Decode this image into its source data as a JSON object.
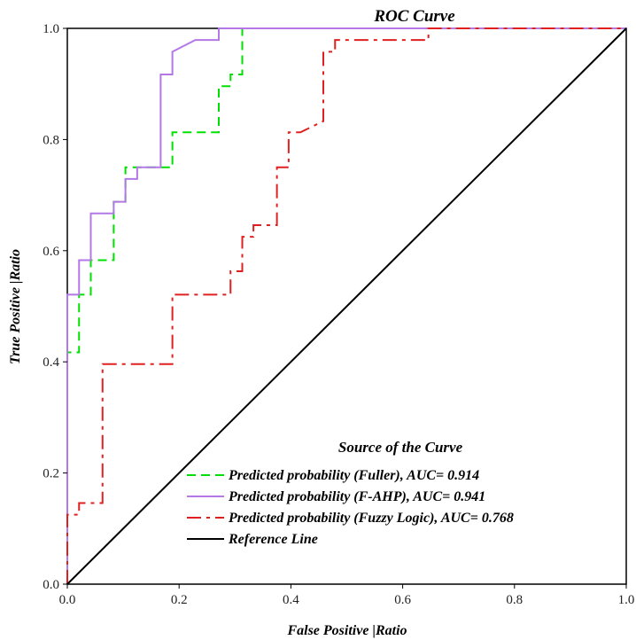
{
  "chart_data": {
    "type": "line",
    "title": "ROC Curve",
    "xlabel": "False Positive |Ratio",
    "ylabel": "True Positive |Ratio",
    "xlim": [
      0,
      1
    ],
    "ylim": [
      0,
      1
    ],
    "x_ticks": [
      "0.0",
      "0.2",
      "0.4",
      "0.6",
      "0.8",
      "1.0"
    ],
    "y_ticks": [
      "0.0",
      "0.2",
      "0.4",
      "0.6",
      "0.8",
      "1.0"
    ],
    "grid": false,
    "legend": {
      "title": "Source of the Curve",
      "placement": "bottom-right",
      "entries": [
        {
          "label": "Predicted probability (Fuller), AUC= 0.914",
          "color": "#00e000",
          "dash": "dashed"
        },
        {
          "label": "Predicted probability (F-AHP), AUC= 0.941",
          "color": "#b478e6",
          "dash": "solid"
        },
        {
          "label": "Predicted probability (Fuzzy Logic), AUC= 0.768",
          "color": "#e02020",
          "dash": "dash-dot"
        },
        {
          "label": "Reference Line",
          "color": "#000000",
          "dash": "solid"
        }
      ]
    },
    "series": [
      {
        "color": "#00e000",
        "dash": "dashed",
        "points": [
          [
            0,
            0
          ],
          [
            0,
            0.417
          ],
          [
            0.021,
            0.417
          ],
          [
            0.021,
            0.521
          ],
          [
            0.042,
            0.521
          ],
          [
            0.042,
            0.583
          ],
          [
            0.083,
            0.583
          ],
          [
            0.083,
            0.688
          ],
          [
            0.104,
            0.688
          ],
          [
            0.104,
            0.75
          ],
          [
            0.188,
            0.75
          ],
          [
            0.188,
            0.813
          ],
          [
            0.271,
            0.813
          ],
          [
            0.271,
            0.896
          ],
          [
            0.292,
            0.896
          ],
          [
            0.292,
            0.917
          ],
          [
            0.313,
            0.917
          ],
          [
            0.313,
            1.0
          ],
          [
            1.0,
            1.0
          ]
        ]
      },
      {
        "color": "#b478e6",
        "dash": "solid",
        "points": [
          [
            0,
            0
          ],
          [
            0,
            0.521
          ],
          [
            0.021,
            0.521
          ],
          [
            0.021,
            0.583
          ],
          [
            0.042,
            0.583
          ],
          [
            0.042,
            0.667
          ],
          [
            0.083,
            0.667
          ],
          [
            0.083,
            0.688
          ],
          [
            0.104,
            0.688
          ],
          [
            0.104,
            0.729
          ],
          [
            0.125,
            0.729
          ],
          [
            0.125,
            0.75
          ],
          [
            0.167,
            0.75
          ],
          [
            0.167,
            0.917
          ],
          [
            0.188,
            0.917
          ],
          [
            0.188,
            0.958
          ],
          [
            0.229,
            0.979
          ],
          [
            0.271,
            0.979
          ],
          [
            0.271,
            1.0
          ],
          [
            1.0,
            1.0
          ]
        ]
      },
      {
        "color": "#e02020",
        "dash": "dash-dot",
        "points": [
          [
            0,
            0
          ],
          [
            0,
            0.125
          ],
          [
            0.021,
            0.125
          ],
          [
            0.021,
            0.146
          ],
          [
            0.063,
            0.146
          ],
          [
            0.063,
            0.396
          ],
          [
            0.188,
            0.396
          ],
          [
            0.188,
            0.521
          ],
          [
            0.292,
            0.521
          ],
          [
            0.292,
            0.563
          ],
          [
            0.313,
            0.563
          ],
          [
            0.313,
            0.625
          ],
          [
            0.333,
            0.625
          ],
          [
            0.333,
            0.646
          ],
          [
            0.375,
            0.646
          ],
          [
            0.375,
            0.75
          ],
          [
            0.396,
            0.75
          ],
          [
            0.396,
            0.813
          ],
          [
            0.417,
            0.813
          ],
          [
            0.458,
            0.833
          ],
          [
            0.458,
            0.958
          ],
          [
            0.479,
            0.958
          ],
          [
            0.479,
            0.979
          ],
          [
            0.646,
            0.979
          ],
          [
            0.646,
            1.0
          ],
          [
            1.0,
            1.0
          ]
        ]
      },
      {
        "color": "#000000",
        "dash": "solid",
        "points": [
          [
            0,
            0
          ],
          [
            1,
            1
          ]
        ]
      }
    ]
  }
}
